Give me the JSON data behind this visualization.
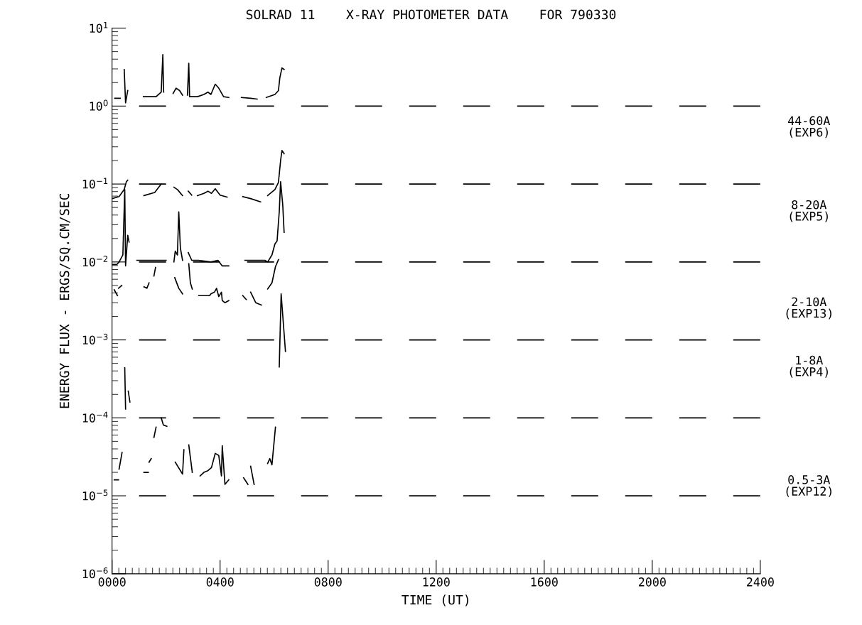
{
  "chart_data": {
    "type": "line",
    "title": "SOLRAD 11    X-RAY PHOTOMETER DATA    FOR 790330",
    "xlabel": "TIME (UT)",
    "ylabel": "ENERGY FLUX - ERGS/SQ.CM/SEC",
    "log": "y",
    "grid": false,
    "legend": false,
    "marker": "none",
    "line_style": "solid",
    "xlim": [
      0,
      2400
    ],
    "xticks": [
      {
        "value": 0,
        "label": "0000"
      },
      {
        "value": 400,
        "label": "0400"
      },
      {
        "value": 800,
        "label": "0800"
      },
      {
        "value": 1200,
        "label": "1200"
      },
      {
        "value": 1600,
        "label": "1600"
      },
      {
        "value": 2000,
        "label": "2000"
      },
      {
        "value": 2400,
        "label": "2400"
      }
    ],
    "ylim": [
      1e-06,
      10
    ],
    "yticks": [
      {
        "value": 1e-06,
        "label": "10$^{−6}$"
      },
      {
        "value": 1e-05,
        "label": "10$^{−5}$"
      },
      {
        "value": 0.0001,
        "label": "10$^{−4}$"
      },
      {
        "value": 0.001,
        "label": "10$^{−3}$"
      },
      {
        "value": 0.01,
        "label": "10$^{−2}$"
      },
      {
        "value": 0.1,
        "label": "10$^{−1}$"
      },
      {
        "value": 1,
        "label": "10$^{0}$"
      },
      {
        "value": 10,
        "label": "10$^{1}$"
      }
    ],
    "series": [
      {
        "color": "#000000",
        "x": [
          10,
          30,
          35,
          45,
          50,
          58,
          90,
          116,
          163,
          182,
          188,
          191,
          210,
          226,
          237,
          250,
          261,
          270,
          279,
          284,
          287,
          316,
          340,
          355,
          366,
          382,
          395,
          413,
          432,
          455,
          479,
          513,
          537,
          555,
          571,
          603,
          616,
          621,
          629,
          637
        ],
        "values": [
          1.26,
          1.26,
          null,
          2.95,
          1.1,
          1.58,
          null,
          1.32,
          1.32,
          1.51,
          4.57,
          1.51,
          null,
          1.45,
          1.7,
          1.58,
          1.38,
          null,
          1.38,
          3.55,
          1.32,
          1.32,
          1.41,
          1.51,
          1.41,
          1.91,
          1.7,
          1.32,
          1.29,
          null,
          1.29,
          1.26,
          1.23,
          null,
          1.29,
          1.41,
          1.58,
          2.29,
          3.09,
          2.95
        ]
      },
      {
        "color": "#000000",
        "x": [
          0,
          26,
          45,
          53,
          58,
          90,
          118,
          158,
          182,
          205,
          229,
          242,
          261,
          270,
          282,
          295,
          305,
          316,
          340,
          355,
          368,
          382,
          400,
          426,
          455,
          484,
          513,
          550,
          562,
          576,
          603,
          616,
          624,
          629,
          637
        ],
        "values": [
          0.065,
          0.069,
          0.085,
          0.107,
          0.112,
          null,
          0.071,
          0.078,
          0.1,
          null,
          0.091,
          0.085,
          0.071,
          null,
          0.081,
          0.072,
          null,
          0.071,
          0.076,
          0.081,
          0.076,
          0.087,
          0.072,
          0.068,
          null,
          0.069,
          0.065,
          0.059,
          null,
          0.071,
          0.085,
          0.105,
          0.2,
          0.27,
          0.245
        ]
      },
      {
        "color": "#000000",
        "x": [
          0,
          18,
          26,
          40,
          47,
          50,
          58,
          63,
          80,
          92,
          200,
          205,
          229,
          234,
          242,
          247,
          253,
          261,
          272,
          282,
          295,
          321,
          366,
          392,
          408,
          432,
          460,
          492,
          566,
          576,
          592,
          603,
          611,
          619,
          624,
          632,
          637
        ],
        "values": [
          0.0093,
          0.0093,
          0.01,
          0.0123,
          0.085,
          0.0089,
          0.022,
          0.018,
          null,
          0.0105,
          0.0105,
          null,
          0.01,
          0.0138,
          0.0123,
          0.044,
          0.015,
          0.0105,
          null,
          0.0132,
          0.0105,
          0.0105,
          0.01,
          0.0105,
          0.0089,
          0.0089,
          null,
          0.0105,
          0.0105,
          0.01,
          0.0123,
          0.017,
          0.0186,
          0.044,
          0.107,
          0.054,
          0.024
        ]
      },
      {
        "color": "#000000",
        "x": [
          8,
          20,
          22,
          24,
          36,
          70,
          118,
          129,
          137,
          150,
          155,
          161,
          200,
          232,
          247,
          261,
          275,
          284,
          290,
          297,
          310,
          321,
          334,
          342,
          361,
          366,
          379,
          387,
          395,
          405,
          408,
          418,
          425,
          432,
          460,
          484,
          497,
          505,
          513,
          532,
          553,
          565,
          576,
          592,
          605,
          616
        ],
        "values": [
          0.0044,
          0.0037,
          null,
          0.0046,
          0.005,
          null,
          0.0048,
          0.0046,
          0.0054,
          null,
          0.0066,
          0.0085,
          null,
          0.0063,
          0.0046,
          0.0039,
          null,
          0.0095,
          0.0054,
          0.0045,
          null,
          0.0037,
          0.0037,
          0.0037,
          0.0037,
          0.0039,
          0.0041,
          0.0046,
          0.0036,
          0.0041,
          0.0032,
          0.003,
          0.0031,
          0.0032,
          null,
          0.0037,
          0.0033,
          null,
          0.0041,
          0.003,
          0.0028,
          null,
          0.0045,
          0.0054,
          0.0087,
          0.0107
        ]
      },
      {
        "color": "#000000",
        "x": [
          47,
          50,
          55,
          60,
          66,
          300,
          619,
          626,
          642
        ],
        "values": [
          0.00044,
          0.00013,
          null,
          0.00022,
          0.00016,
          null,
          0.00045,
          0.0039,
          0.00071
        ]
      },
      {
        "color": "#000000",
        "x": [
          8,
          24,
          25,
          26,
          37,
          80,
          118,
          134,
          135,
          137,
          145,
          150,
          155,
          163,
          172,
          182,
          190,
          203,
          215,
          234,
          261,
          266,
          275,
          284,
          297,
          310,
          326,
          340,
          355,
          368,
          382,
          395,
          405,
          408,
          418,
          425,
          432,
          470,
          487,
          503,
          508,
          513,
          526,
          560,
          576,
          584,
          592,
          605
        ],
        "values": [
          1.6e-05,
          1.6e-05,
          null,
          2.2e-05,
          3.6e-05,
          null,
          2e-05,
          2e-05,
          null,
          2.7e-05,
          3e-05,
          null,
          5.6e-05,
          7.6e-05,
          null,
          0.0001,
          8.1e-05,
          7.8e-05,
          null,
          2.7e-05,
          1.9e-05,
          3.9e-05,
          null,
          4.5e-05,
          2e-05,
          null,
          1.8e-05,
          2e-05,
          2.1e-05,
          2.3e-05,
          3.5e-05,
          3.3e-05,
          1.8e-05,
          4.4e-05,
          1.4e-05,
          1.5e-05,
          1.6e-05,
          null,
          1.7e-05,
          1.4e-05,
          null,
          2.4e-05,
          1.4e-05,
          null,
          2.6e-05,
          3e-05,
          2.5e-05,
          7.6e-05
        ]
      }
    ],
    "ref_lines": [
      {
        "axis": "y",
        "value": 1,
        "color": "#000000",
        "line_style": "dashed"
      },
      {
        "axis": "y",
        "value": 0.1,
        "color": "#000000",
        "line_style": "dashed"
      },
      {
        "axis": "y",
        "value": 0.01,
        "color": "#000000",
        "line_style": "dashed"
      },
      {
        "axis": "y",
        "value": 0.001,
        "color": "#000000",
        "line_style": "dashed"
      },
      {
        "axis": "y",
        "value": 0.0001,
        "color": "#000000",
        "line_style": "dashed"
      },
      {
        "axis": "y",
        "value": 1e-05,
        "color": "#000000",
        "line_style": "dashed"
      }
    ],
    "annotations": [
      "44-60A\n(EXP6)",
      "8-20A\n(EXP5)",
      "2-10A\n(EXP13)",
      "1-8A\n(EXP4)",
      "0.5-3A\n(EXP12)"
    ]
  }
}
